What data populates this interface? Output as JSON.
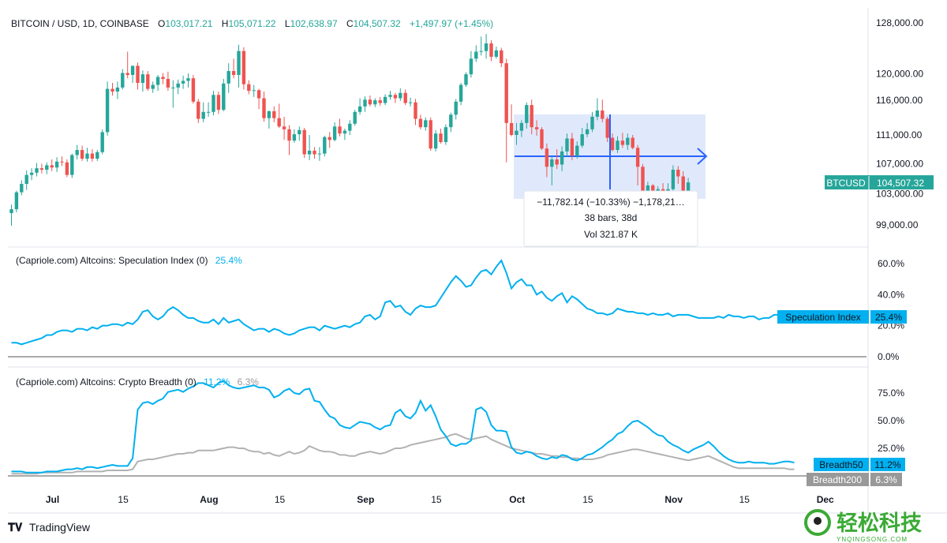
{
  "header": {
    "symbol": "BITCOIN / USD, 1D, COINBASE",
    "o_label": "O",
    "o_value": "103,017.21",
    "h_label": "H",
    "h_value": "105,071.22",
    "l_label": "L",
    "l_value": "102,638.97",
    "c_label": "C",
    "c_value": "104,507.32",
    "change": "+1,497.97 (+1.45%)"
  },
  "price_axis": {
    "ticks": [
      {
        "v": 128000,
        "label": "128,000.00"
      },
      {
        "v": 120000,
        "label": "120,000.00"
      },
      {
        "v": 116000,
        "label": "116,000.00"
      },
      {
        "v": 111000,
        "label": "111,000.00"
      },
      {
        "v": 107000,
        "label": "107,000.00"
      },
      {
        "v": 103000,
        "label": "103,000.00"
      },
      {
        "v": 99000,
        "label": "99,000.00"
      }
    ],
    "badge_symbol": "BTCUSD",
    "badge_value": "104,507.32",
    "badge_v": 104507.32
  },
  "measure": {
    "line1": "−11,782.14 (−10.33%) −1,178,21…",
    "line2": "38 bars, 38d",
    "line3": "Vol 321.87 K"
  },
  "spec": {
    "title": "(Capriole.com) Altcoins: Speculation Index (0)",
    "value": "25.4%",
    "badge_label": "Speculation Index",
    "badge_value": "25.4%",
    "ticks": [
      {
        "v": 60,
        "label": "60.0%"
      },
      {
        "v": 40,
        "label": "40.0%"
      },
      {
        "v": 20,
        "label": "20.0%"
      },
      {
        "v": 0,
        "label": "0.0%"
      }
    ]
  },
  "breadth": {
    "title": "(Capriole.com) Altcoins: Crypto Breadth (0)",
    "value50": "11.2%",
    "value200": "6.3%",
    "badge50_label": "Breadth50",
    "badge50_value": "11.2%",
    "badge200_label": "Breadth200",
    "badge200_value": "6.3%",
    "ticks": [
      {
        "v": 75,
        "label": "75.0%"
      },
      {
        "v": 50,
        "label": "50.0%"
      },
      {
        "v": 25,
        "label": "25.0%"
      }
    ]
  },
  "time_axis": [
    {
      "d": 0,
      "label": "Jul"
    },
    {
      "d": 14,
      "label": "15"
    },
    {
      "d": 31,
      "label": "Aug"
    },
    {
      "d": 45,
      "label": "15"
    },
    {
      "d": 62,
      "label": "Sep"
    },
    {
      "d": 76,
      "label": "15"
    },
    {
      "d": 92,
      "label": "Oct"
    },
    {
      "d": 106,
      "label": "15"
    },
    {
      "d": 123,
      "label": "Nov"
    },
    {
      "d": 137,
      "label": "15"
    },
    {
      "d": 153,
      "label": "Dec"
    }
  ],
  "footer": {
    "brand": "TradingView",
    "watermark_cn": "轻松科技",
    "watermark_url": "YNQINGSONG.COM"
  },
  "colors": {
    "up": "#26a69a",
    "down": "#ef5350",
    "spec_line": "#00b0f0",
    "breadth50": "#00b0f0",
    "breadth200": "#b2b2b2",
    "range_fill": "#d6e1fb",
    "range_line": "#2962ff",
    "grid_text": "#131722"
  },
  "chart_data": {
    "type": "candlestick",
    "x_axis": "date",
    "start": "2025-06-24",
    "price_candles": [
      [
        100500,
        101600,
        98900,
        101000
      ],
      [
        101000,
        103400,
        100600,
        103200
      ],
      [
        103200,
        104800,
        102800,
        104300
      ],
      [
        104300,
        106100,
        103500,
        105500
      ],
      [
        105500,
        106400,
        104800,
        105800
      ],
      [
        105800,
        107100,
        105300,
        106400
      ],
      [
        106400,
        107000,
        105700,
        106200
      ],
      [
        106200,
        107200,
        105600,
        106800
      ],
      [
        106800,
        107600,
        106000,
        106500
      ],
      [
        106500,
        107900,
        105900,
        107300
      ],
      [
        107300,
        108000,
        106700,
        107200
      ],
      [
        107200,
        107600,
        105200,
        105500
      ],
      [
        105500,
        108400,
        105100,
        108200
      ],
      [
        108200,
        109600,
        107600,
        108900
      ],
      [
        108900,
        109500,
        107400,
        107700
      ],
      [
        107700,
        109200,
        107300,
        108400
      ],
      [
        108400,
        109000,
        107300,
        107700
      ],
      [
        107700,
        108900,
        107400,
        108600
      ],
      [
        108600,
        111800,
        108300,
        111400
      ],
      [
        111400,
        118800,
        110900,
        117700
      ],
      [
        117700,
        118600,
        116700,
        117300
      ],
      [
        117300,
        118800,
        116200,
        117900
      ],
      [
        117900,
        120700,
        117600,
        120100
      ],
      [
        120100,
        123400,
        119300,
        119800
      ],
      [
        119800,
        121200,
        118600,
        121200
      ],
      [
        121200,
        121700,
        117600,
        118600
      ],
      [
        118600,
        120500,
        117300,
        119900
      ],
      [
        119900,
        120400,
        117400,
        117700
      ],
      [
        117700,
        118800,
        117100,
        118300
      ],
      [
        118300,
        119800,
        117400,
        119500
      ],
      [
        119500,
        120100,
        118400,
        119200
      ],
      [
        119200,
        120300,
        117400,
        117900
      ],
      [
        117900,
        119000,
        114900,
        117900
      ],
      [
        117900,
        119100,
        116900,
        118500
      ],
      [
        118500,
        119700,
        117700,
        118900
      ],
      [
        118900,
        120000,
        117900,
        119300
      ],
      [
        119300,
        119800,
        115500,
        115800
      ],
      [
        115800,
        116200,
        112700,
        113300
      ],
      [
        113300,
        115700,
        112800,
        114300
      ],
      [
        114300,
        115700,
        113600,
        114300
      ],
      [
        114300,
        117400,
        113800,
        116800
      ],
      [
        116800,
        117300,
        114000,
        114600
      ],
      [
        114600,
        119200,
        114400,
        118500
      ],
      [
        118500,
        121600,
        117100,
        120400
      ],
      [
        120400,
        122300,
        119300,
        119800
      ],
      [
        119800,
        124500,
        117900,
        123500
      ],
      [
        123500,
        124100,
        117600,
        118400
      ],
      [
        118400,
        119000,
        116900,
        117400
      ],
      [
        117400,
        118300,
        116500,
        117500
      ],
      [
        117500,
        117700,
        114700,
        116300
      ],
      [
        116300,
        117300,
        112900,
        113400
      ],
      [
        113400,
        114500,
        111900,
        114400
      ],
      [
        114400,
        115100,
        112800,
        113400
      ],
      [
        113400,
        115500,
        112000,
        112200
      ],
      [
        112200,
        113600,
        110300,
        111800
      ],
      [
        111800,
        112400,
        108200,
        110200
      ],
      [
        110200,
        111800,
        109900,
        111100
      ],
      [
        111100,
        112200,
        110200,
        111700
      ],
      [
        111700,
        112000,
        107800,
        108300
      ],
      [
        108300,
        111000,
        107500,
        108800
      ],
      [
        108800,
        109300,
        107700,
        108300
      ],
      [
        108300,
        109300,
        107400,
        108400
      ],
      [
        108400,
        110900,
        108000,
        110700
      ],
      [
        110700,
        111400,
        109200,
        110300
      ],
      [
        110300,
        112800,
        110100,
        112200
      ],
      [
        112200,
        113300,
        110800,
        111200
      ],
      [
        111200,
        111900,
        110300,
        111600
      ],
      [
        111600,
        113100,
        111000,
        112600
      ],
      [
        112600,
        114600,
        112300,
        114300
      ],
      [
        114300,
        116300,
        113900,
        115100
      ],
      [
        115100,
        116600,
        114300,
        116100
      ],
      [
        116100,
        116700,
        115100,
        115400
      ],
      [
        115400,
        116300,
        115000,
        116000
      ],
      [
        116000,
        116500,
        115200,
        115600
      ],
      [
        115600,
        116900,
        115300,
        116500
      ],
      [
        116500,
        117400,
        116100,
        116800
      ],
      [
        116800,
        117100,
        115600,
        116300
      ],
      [
        116300,
        117800,
        115900,
        117100
      ],
      [
        117100,
        117600,
        115300,
        115600
      ],
      [
        115600,
        116400,
        115100,
        115700
      ],
      [
        115700,
        116200,
        112400,
        113300
      ],
      [
        113300,
        113900,
        111800,
        112100
      ],
      [
        112100,
        113500,
        111600,
        113100
      ],
      [
        113100,
        113500,
        108800,
        109100
      ],
      [
        109100,
        111700,
        108700,
        111200
      ],
      [
        111200,
        111900,
        109800,
        110000
      ],
      [
        110000,
        112500,
        109600,
        112100
      ],
      [
        112100,
        114200,
        111400,
        113900
      ],
      [
        113900,
        116200,
        113200,
        115800
      ],
      [
        115800,
        118600,
        115300,
        118300
      ],
      [
        118300,
        120200,
        118000,
        119900
      ],
      [
        119900,
        123500,
        119400,
        122300
      ],
      [
        122300,
        124400,
        121800,
        123400
      ],
      [
        123400,
        125800,
        122800,
        123500
      ],
      [
        123500,
        126200,
        122300,
        124700
      ],
      [
        124700,
        125200,
        121900,
        122600
      ],
      [
        122600,
        124200,
        122300,
        123600
      ],
      [
        123600,
        124000,
        121000,
        121600
      ],
      [
        121600,
        122300,
        107200,
        112700
      ],
      [
        112700,
        115400,
        110800,
        111000
      ],
      [
        111000,
        112700,
        109600,
        111600
      ],
      [
        111600,
        113100,
        110700,
        112700
      ],
      [
        112700,
        115700,
        111900,
        115300
      ],
      [
        115300,
        116100,
        111100,
        112100
      ],
      [
        112100,
        113100,
        110900,
        111800
      ],
      [
        111800,
        112100,
        108900,
        109100
      ],
      [
        109100,
        109800,
        105200,
        106600
      ],
      [
        106600,
        108000,
        104100,
        107600
      ],
      [
        107600,
        109000,
        106300,
        106900
      ],
      [
        106900,
        109400,
        106000,
        108700
      ],
      [
        108700,
        111200,
        108000,
        110500
      ],
      [
        110500,
        111300,
        107500,
        108100
      ],
      [
        108100,
        110100,
        107700,
        109500
      ],
      [
        109500,
        112000,
        109200,
        111100
      ],
      [
        111100,
        112700,
        110700,
        111800
      ],
      [
        111800,
        114300,
        111400,
        113600
      ],
      [
        113600,
        116300,
        113100,
        114500
      ],
      [
        114500,
        116100,
        112800,
        113300
      ],
      [
        113300,
        113600,
        110000,
        110600
      ],
      [
        110600,
        111200,
        108700,
        108900
      ],
      [
        108900,
        110800,
        108500,
        110200
      ],
      [
        110200,
        111300,
        109200,
        109600
      ],
      [
        109600,
        111200,
        108900,
        110600
      ],
      [
        110600,
        111000,
        109000,
        109200
      ],
      [
        109200,
        109600,
        104100,
        106600
      ],
      [
        106600,
        107000,
        98900,
        101600
      ],
      [
        101600,
        104600,
        100700,
        104100
      ],
      [
        104100,
        104300,
        99200,
        100500
      ],
      [
        100500,
        104000,
        100200,
        103600
      ],
      [
        103600,
        104400,
        100700,
        102000
      ],
      [
        102000,
        104400,
        101300,
        103600
      ],
      [
        103600,
        106800,
        103100,
        106200
      ],
      [
        106200,
        106700,
        104300,
        105300
      ],
      [
        105300,
        106000,
        102400,
        103000
      ],
      [
        103000,
        105100,
        102600,
        104500
      ]
    ],
    "spec_index": [
      9,
      9,
      8,
      9,
      10,
      11,
      12,
      14,
      14,
      16,
      17,
      17,
      16,
      18,
      18,
      17,
      19,
      18,
      20,
      20,
      21,
      21,
      20,
      22,
      21,
      24,
      29,
      30,
      26,
      24,
      26,
      30,
      32,
      30,
      27,
      25,
      25,
      23,
      22,
      22,
      24,
      21,
      25,
      22,
      23,
      24,
      21,
      19,
      17,
      18,
      18,
      16,
      18,
      17,
      15,
      14,
      15,
      17,
      18,
      19,
      19,
      17,
      20,
      19,
      18,
      19,
      20,
      19,
      21,
      22,
      26,
      27,
      24,
      26,
      35,
      36,
      32,
      33,
      29,
      27,
      31,
      33,
      32,
      32,
      33,
      38,
      43,
      48,
      52,
      49,
      45,
      46,
      51,
      55,
      56,
      53,
      58,
      62,
      54,
      44,
      48,
      50,
      46,
      46,
      40,
      42,
      38,
      36,
      39,
      41,
      35,
      39,
      37,
      34,
      31,
      30,
      28,
      28,
      27,
      28,
      31,
      30,
      29,
      29,
      28,
      28,
      27,
      28,
      27,
      27,
      28,
      26,
      27,
      27,
      27,
      26,
      25,
      25,
      25,
      25,
      26,
      25,
      27,
      26,
      26,
      25,
      26,
      26,
      24,
      25,
      25,
      27,
      27,
      27,
      26,
      25,
      25
    ],
    "breadth50": [
      4,
      4,
      4,
      3,
      3,
      3,
      3,
      4,
      4,
      4,
      5,
      6,
      6,
      7,
      6,
      8,
      8,
      7,
      8,
      9,
      10,
      9,
      9,
      9,
      16,
      60,
      66,
      67,
      65,
      68,
      70,
      76,
      77,
      78,
      76,
      79,
      81,
      84,
      84,
      82,
      80,
      84,
      86,
      82,
      80,
      79,
      80,
      81,
      82,
      80,
      80,
      78,
      71,
      73,
      77,
      79,
      75,
      74,
      78,
      79,
      68,
      67,
      60,
      54,
      52,
      46,
      44,
      43,
      46,
      49,
      48,
      47,
      44,
      42,
      45,
      46,
      57,
      60,
      54,
      52,
      57,
      68,
      59,
      64,
      54,
      42,
      36,
      29,
      27,
      29,
      29,
      32,
      60,
      62,
      58,
      46,
      41,
      41,
      40,
      26,
      21,
      20,
      22,
      21,
      18,
      16,
      15,
      17,
      16,
      19,
      18,
      15,
      14,
      16,
      19,
      20,
      23,
      26,
      30,
      33,
      38,
      40,
      45,
      49,
      50,
      47,
      44,
      40,
      37,
      36,
      31,
      28,
      26,
      23,
      21,
      24,
      26,
      28,
      31,
      27,
      22,
      18,
      15,
      13,
      12,
      12,
      13,
      12,
      12,
      12,
      11,
      11,
      12,
      13,
      13,
      12
    ],
    "breadth200": [
      2,
      2,
      2,
      2,
      2,
      2,
      3,
      3,
      3,
      3,
      3,
      3,
      3,
      4,
      4,
      4,
      4,
      4,
      4,
      5,
      5,
      5,
      5,
      5,
      6,
      13,
      14,
      15,
      15,
      16,
      17,
      18,
      19,
      20,
      20,
      21,
      21,
      23,
      23,
      23,
      23,
      24,
      25,
      26,
      26,
      25,
      25,
      23,
      22,
      22,
      20,
      21,
      19,
      18,
      20,
      22,
      20,
      21,
      23,
      27,
      25,
      23,
      22,
      22,
      21,
      19,
      19,
      18,
      18,
      20,
      21,
      22,
      21,
      20,
      21,
      23,
      25,
      25,
      26,
      28,
      29,
      30,
      31,
      32,
      33,
      34,
      35,
      37,
      38,
      36,
      34,
      33,
      34,
      35,
      36,
      33,
      31,
      29,
      27,
      25,
      24,
      23,
      22,
      21,
      20,
      20,
      19,
      18,
      18,
      17,
      17,
      16,
      16,
      15,
      15,
      15,
      16,
      17,
      19,
      20,
      21,
      22,
      23,
      24,
      24,
      23,
      22,
      21,
      20,
      19,
      18,
      17,
      16,
      15,
      14,
      15,
      16,
      17,
      18,
      16,
      14,
      12,
      10,
      8,
      7,
      7,
      7,
      7,
      7,
      7,
      7,
      7,
      7,
      7,
      6,
      6
    ]
  }
}
